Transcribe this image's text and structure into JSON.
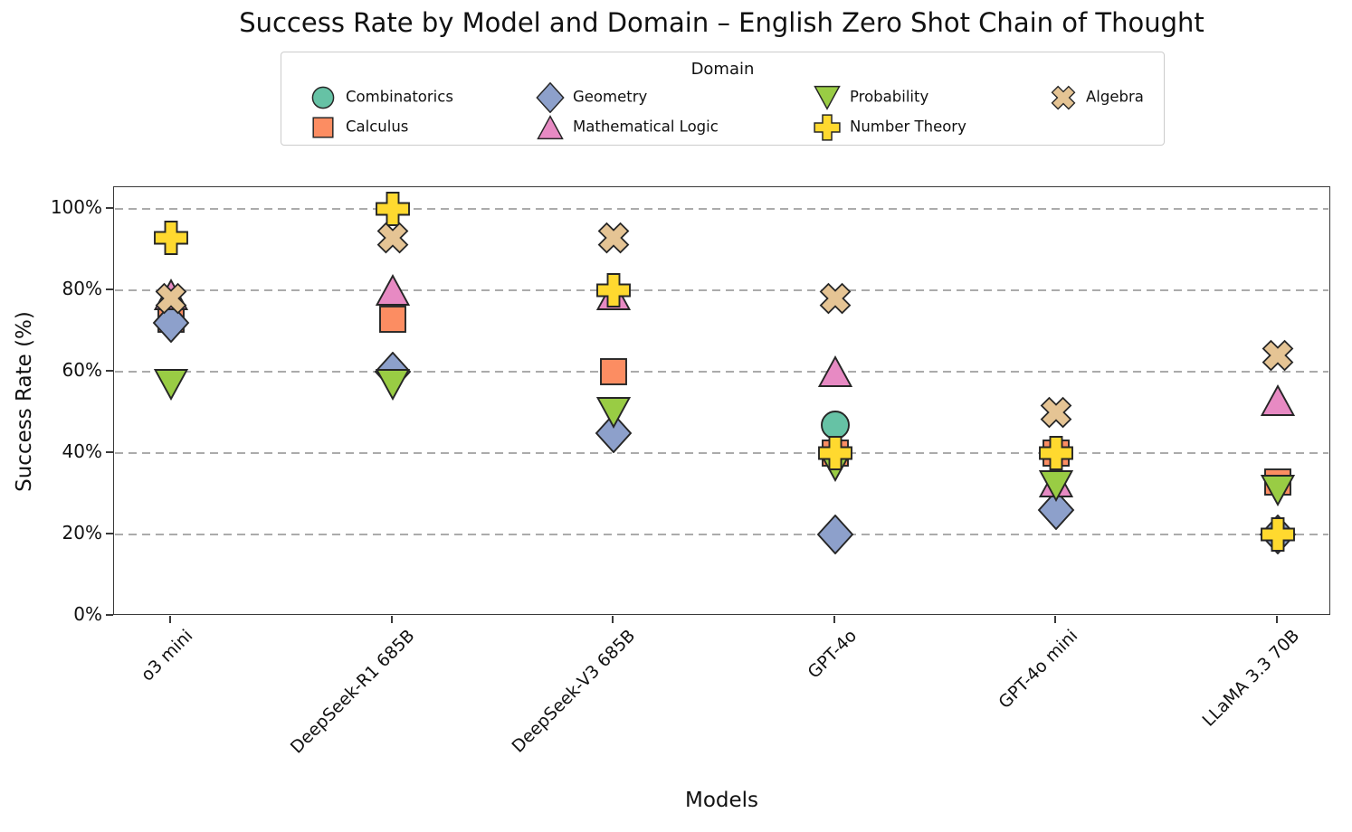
{
  "title": "Success Rate by Model and Domain – English Zero Shot Chain of Thought",
  "legend": {
    "title": "Domain",
    "items": [
      {
        "label": "Combinatorics",
        "series_index": 0
      },
      {
        "label": "Calculus",
        "series_index": 1
      },
      {
        "label": "Geometry",
        "series_index": 2
      },
      {
        "label": "Mathematical Logic",
        "series_index": 3
      },
      {
        "label": "Probability",
        "series_index": 4
      },
      {
        "label": "Number Theory",
        "series_index": 5
      },
      {
        "label": "Algebra",
        "series_index": 6
      }
    ]
  },
  "axes": {
    "y_label": "Success Rate (%)",
    "x_label": "Models",
    "y_tick_labels": [
      "0%",
      "20%",
      "40%",
      "60%",
      "80%",
      "100%"
    ],
    "y_tick_values": [
      0,
      20,
      40,
      60,
      80,
      100
    ]
  },
  "chart_data": {
    "type": "scatter",
    "title": "Success Rate by Model and Domain – English Zero Shot Chain of Thought",
    "xlabel": "Models",
    "ylabel": "Success Rate (%)",
    "ylim": [
      0,
      105
    ],
    "grid": "horizontal-dashed",
    "legend_position": "top-center",
    "categories": [
      "o3 mini",
      "DeepSeek-R1 685B",
      "DeepSeek-V3 685B",
      "GPT-4o",
      "GPT-4o mini",
      "LLaMA 3.3 70B"
    ],
    "series": [
      {
        "name": "Combinatorics",
        "marker": "circle",
        "color": "#66c2a5",
        "edge_color": "#262626",
        "values": [
          null,
          null,
          null,
          47,
          null,
          null
        ]
      },
      {
        "name": "Calculus",
        "marker": "square",
        "color": "#fc8d62",
        "edge_color": "#262626",
        "values": [
          73,
          73,
          60,
          40,
          40,
          33
        ]
      },
      {
        "name": "Geometry",
        "marker": "diamond",
        "color": "#8da0cb",
        "edge_color": "#262626",
        "values": [
          72,
          60,
          45,
          20,
          26,
          20
        ]
      },
      {
        "name": "Mathematical Logic",
        "marker": "triangle-up",
        "color": "#e78ac3",
        "edge_color": "#262626",
        "values": [
          79,
          80,
          79,
          60,
          33,
          53
        ]
      },
      {
        "name": "Probability",
        "marker": "triangle-down",
        "color": "#99cc44",
        "edge_color": "#262626",
        "values": [
          57,
          57,
          50,
          37,
          32,
          31
        ]
      },
      {
        "name": "Number Theory",
        "marker": "plus",
        "color": "#ffd92f",
        "edge_color": "#262626",
        "values": [
          93,
          100,
          80,
          40,
          40,
          20
        ]
      },
      {
        "name": "Algebra",
        "marker": "x",
        "color": "#e5c494",
        "edge_color": "#262626",
        "values": [
          78,
          93,
          93,
          78,
          50,
          64
        ]
      }
    ]
  }
}
